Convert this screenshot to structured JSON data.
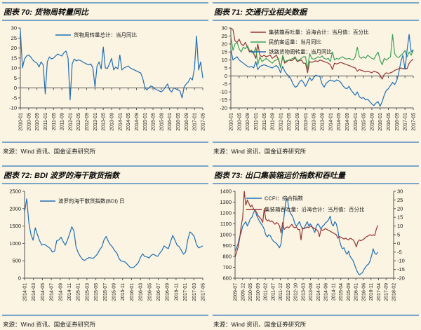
{
  "page": {
    "background_color": "#fbf4e2",
    "accent_rule_color": "#7aa5c9"
  },
  "chart_data": [
    {
      "type": "line",
      "title": "图表 70: 货物周转量同比",
      "source": "来源：Wind 资讯、国金证券研究所",
      "ylim": [
        -10,
        30
      ],
      "ytick": 5,
      "grid": false,
      "legend_position": "top-center",
      "x_labels": [
        "2010-01",
        "2010-05",
        "2010-09",
        "2011-01",
        "2011-05",
        "2011-09",
        "2012-01",
        "2012-05",
        "2012-09",
        "2013-01",
        "2013-05",
        "2013-09",
        "2014-01",
        "2014-05",
        "2014-09",
        "2015-01",
        "2015-05",
        "2015-09",
        "2016-01",
        "2016-05",
        "2016-09",
        "2017-01",
        "2017-05"
      ],
      "series": [
        {
          "name": "货物周转量总计：当月同比",
          "color": "#1f6eb5",
          "axis": "y",
          "values": [
            29,
            10,
            14.5,
            16,
            16.5,
            15.5,
            14,
            13,
            12.5,
            10.5,
            13,
            11.5,
            -3,
            13,
            15.5,
            14.5,
            15,
            16,
            17,
            16.5,
            16,
            17.5,
            18.5,
            15,
            -6,
            12,
            14.5,
            13.5,
            14,
            13.8,
            13,
            12.5,
            12,
            11.5,
            12,
            10,
            0.5,
            11,
            13,
            9.5,
            20.5,
            10,
            9.8,
            12,
            14.8,
            9,
            10.5,
            9.5,
            16.5,
            9,
            10,
            10.5,
            11,
            10,
            9.5,
            9,
            8.5,
            8,
            7.5,
            5,
            0.5,
            -1,
            0,
            1,
            0.5,
            -0.5,
            -1,
            -1.5,
            -2,
            -1,
            0.5,
            2,
            -1,
            -2,
            0,
            -0.5,
            -1,
            -1.5,
            -5,
            0.5,
            2,
            3,
            5,
            4,
            10,
            26,
            9,
            13,
            5
          ]
        }
      ]
    },
    {
      "type": "line",
      "title": "图表 71: 交通行业相关数据",
      "source": "来源：Wind 资讯、国金证券研究所",
      "ylim": [
        -20,
        30
      ],
      "ytick": 5,
      "grid": false,
      "legend_position": "top-left",
      "x_labels": [
        "2010-01",
        "2010-05",
        "2010-09",
        "2011-01",
        "2011-05",
        "2011-09",
        "2012-01",
        "2012-05",
        "2012-09",
        "2013-01",
        "2013-05",
        "2013-09",
        "2014-01",
        "2014-05",
        "2014-09",
        "2015-01",
        "2015-05",
        "2015-09",
        "2016-01",
        "2016-05",
        "2016-09",
        "2017-01",
        "2017-05"
      ],
      "series": [
        {
          "name": "集装箱吞吐量：沿海合计：当月值：百分比",
          "color": "#943634",
          "axis": "y",
          "values": [
            30,
            29,
            22,
            21,
            23,
            20,
            19,
            21,
            18,
            15,
            16,
            14,
            11,
            20,
            13,
            12,
            13,
            12,
            12.5,
            13,
            11,
            12,
            13,
            10,
            5.5,
            12,
            8,
            9,
            10,
            9.5,
            10,
            11.5,
            9,
            9.5,
            10,
            8,
            8,
            2,
            9,
            8.5,
            9,
            9.5,
            9,
            10,
            9.5,
            9,
            8.5,
            8,
            7,
            4,
            8,
            7.5,
            8,
            8.5,
            8,
            7.5,
            7,
            6.5,
            6,
            5.5,
            5,
            3,
            4,
            3.5,
            3,
            2.5,
            3,
            2.5,
            2,
            3,
            2.5,
            2,
            0.5,
            -2,
            1,
            2,
            1.5,
            2,
            2.5,
            3.5,
            4,
            4.5,
            5,
            4.5,
            5,
            4.5,
            8,
            9.5,
            10.5
          ]
        },
        {
          "name": "民航客运量：当月同比",
          "color": "#3ba158",
          "axis": "y",
          "values": [
            25,
            16,
            20,
            21,
            17,
            15,
            18,
            17,
            19,
            16,
            15,
            14,
            18,
            7,
            12,
            9,
            10,
            11,
            10,
            9,
            8,
            9.5,
            10,
            11,
            5,
            13,
            9,
            9.5,
            10,
            10.5,
            11,
            12,
            9.5,
            10,
            11,
            12,
            12,
            4,
            14,
            11,
            10.5,
            11,
            12,
            11.5,
            12.5,
            11,
            10.5,
            11,
            9,
            15,
            10,
            11,
            10.5,
            11.5,
            12,
            11,
            10.5,
            11,
            10.5,
            10,
            12,
            18,
            12,
            11,
            12,
            11,
            13,
            12,
            11,
            10.5,
            13,
            15,
            10,
            7,
            11,
            10,
            11,
            12,
            26,
            14,
            12,
            11.5,
            13,
            14,
            16,
            12,
            15,
            13,
            16
          ]
        },
        {
          "name": "铁路货物周转量：当月同比",
          "color": "#1f6eb5",
          "axis": "y",
          "values": [
            17,
            10,
            11,
            12,
            10,
            9,
            8,
            7,
            6,
            5.5,
            6,
            5,
            9,
            4,
            6,
            6.5,
            7,
            6.5,
            6,
            5.5,
            5,
            6,
            6.5,
            5,
            2,
            6,
            3,
            1,
            0,
            -2,
            -5,
            -7,
            -6.5,
            -4,
            -2.5,
            -4,
            -6.5,
            -4,
            -1,
            -3,
            -1,
            0.5,
            0,
            -0.5,
            -5,
            -7,
            -4.5,
            -3.5,
            -2.5,
            -3,
            -3.5,
            -2.5,
            -3,
            -4,
            -6,
            -7.5,
            -8,
            -6.5,
            -9,
            -10.5,
            -12,
            -10,
            -13,
            -14,
            -13.5,
            -15,
            -14.5,
            -16,
            -17.5,
            -18.5,
            -17,
            -16,
            -19,
            -16,
            -12,
            -9,
            -8,
            -6,
            -4,
            -5.5,
            -3,
            2,
            9,
            13,
            4,
            16,
            26,
            15,
            16.5
          ]
        }
      ]
    },
    {
      "type": "line",
      "title": "图表 72: BDI 波罗的海干散货指数",
      "source": "来源：Wind 资讯、国金证券研究所",
      "ylim": [
        0,
        2500
      ],
      "ytick": 500,
      "grid": false,
      "legend_position": "top-left",
      "x_labels": [
        "2014-01",
        "2014-03",
        "2014-05",
        "2014-07",
        "2014-09",
        "2014-11",
        "2015-01",
        "2015-03",
        "2015-05",
        "2015-07",
        "2015-09",
        "2015-11",
        "2016-01",
        "2016-03",
        "2016-05",
        "2016-07",
        "2016-09",
        "2016-11",
        "2017-01",
        "2017-03",
        "2017-05"
      ],
      "series": [
        {
          "name": "波罗的海干散货指数(BDI) 日",
          "color": "#1f6eb5",
          "axis": "y",
          "values": [
            1900,
            2285,
            1600,
            1250,
            1090,
            1450,
            1250,
            1080,
            950,
            980,
            940,
            900,
            850,
            750,
            780,
            1080,
            1100,
            1180,
            1050,
            950,
            1100,
            1280,
            1480,
            1350,
            900,
            730,
            620,
            540,
            510,
            560,
            590,
            580,
            570,
            630,
            700,
            820,
            900,
            1100,
            1200,
            1060,
            960,
            890,
            790,
            720,
            560,
            490,
            480,
            460,
            390,
            320,
            300,
            320,
            380,
            450,
            600,
            700,
            620,
            610,
            580,
            660,
            690,
            650,
            630,
            720,
            800,
            930,
            880,
            850,
            1050,
            1230,
            1100,
            950,
            910,
            800,
            690,
            750,
            1100,
            1330,
            1280,
            1200,
            980,
            870,
            900,
            930
          ]
        }
      ]
    },
    {
      "type": "line",
      "title": "图表 73: 出口集装箱运价指数和吞吐量",
      "source": "来源：Wind 资讯、国金证券研究所",
      "ylim": [
        600,
        1400
      ],
      "ytick": 100,
      "y2lim": [
        -20,
        30
      ],
      "y2tick": 5,
      "grid": false,
      "legend_position": "top-left",
      "x_labels": [
        "2009-07",
        "2009-12",
        "2010-05",
        "2010-09",
        "2011-02",
        "2011-07",
        "2011-12",
        "2012-05",
        "2012-10",
        "2013-03",
        "2013-08",
        "2014-01",
        "2014-06",
        "2014-11",
        "2015-04",
        "2015-09",
        "2016-01",
        "2016-06",
        "2016-11",
        "2017-04",
        "2017-09",
        "2018-02"
      ],
      "series": [
        {
          "name": "CCFI：综合指数",
          "color": "#1f6eb5",
          "axis": "y",
          "values": [
            850,
            880,
            920,
            980,
            1020,
            1080,
            1100,
            1120,
            1080,
            1110,
            1150,
            1160,
            1200,
            1230,
            1180,
            1150,
            1120,
            1100,
            1080,
            1050,
            1000,
            980,
            1000,
            990,
            960,
            940,
            930,
            920,
            900,
            880,
            920,
            1050,
            1180,
            1300,
            1336,
            1250,
            1200,
            1180,
            1150,
            1100,
            1080,
            1100,
            1120,
            1080,
            1050,
            1060,
            1090,
            1120,
            1080,
            1100,
            1080,
            1050,
            1020,
            1080,
            1100,
            1080,
            1050,
            1080,
            1090,
            1110,
            1120,
            1140,
            1170,
            1100,
            1080,
            1120,
            1100,
            1040,
            950,
            900,
            870,
            880,
            840,
            820,
            850,
            800,
            780,
            760,
            720,
            680,
            650,
            630,
            640,
            650,
            680,
            700,
            720,
            730,
            760,
            810,
            870,
            830,
            820,
            840
          ]
        },
        {
          "name": "集装箱吞吐量：沿海合计：当月值：百分比",
          "color": "#943634",
          "axis": "y2",
          "values": [
            -8,
            -5,
            -2,
            3,
            10,
            15,
            30,
            22,
            25,
            23,
            21,
            22,
            20,
            19,
            18,
            16,
            15,
            14,
            12,
            20,
            14,
            13,
            13.5,
            12.5,
            13,
            12,
            11,
            12,
            11.5,
            10,
            6,
            12,
            8,
            9,
            9.5,
            9,
            10,
            11,
            9.5,
            9,
            9.5,
            8,
            8,
            2,
            9,
            8.5,
            9,
            9.5,
            9,
            10,
            9.5,
            9,
            8.5,
            8,
            7,
            4,
            8,
            7.5,
            8,
            8.5,
            8,
            7.5,
            7,
            6.5,
            6,
            5.5,
            5,
            3,
            4,
            3.5,
            3,
            2.5,
            3,
            2.5,
            2,
            3,
            2.5,
            2,
            0.5,
            -2,
            1,
            2,
            1.5,
            2,
            2.5,
            3.5,
            4,
            4.5,
            5,
            4.5,
            5,
            4.5,
            8,
            10.5
          ]
        }
      ]
    }
  ]
}
